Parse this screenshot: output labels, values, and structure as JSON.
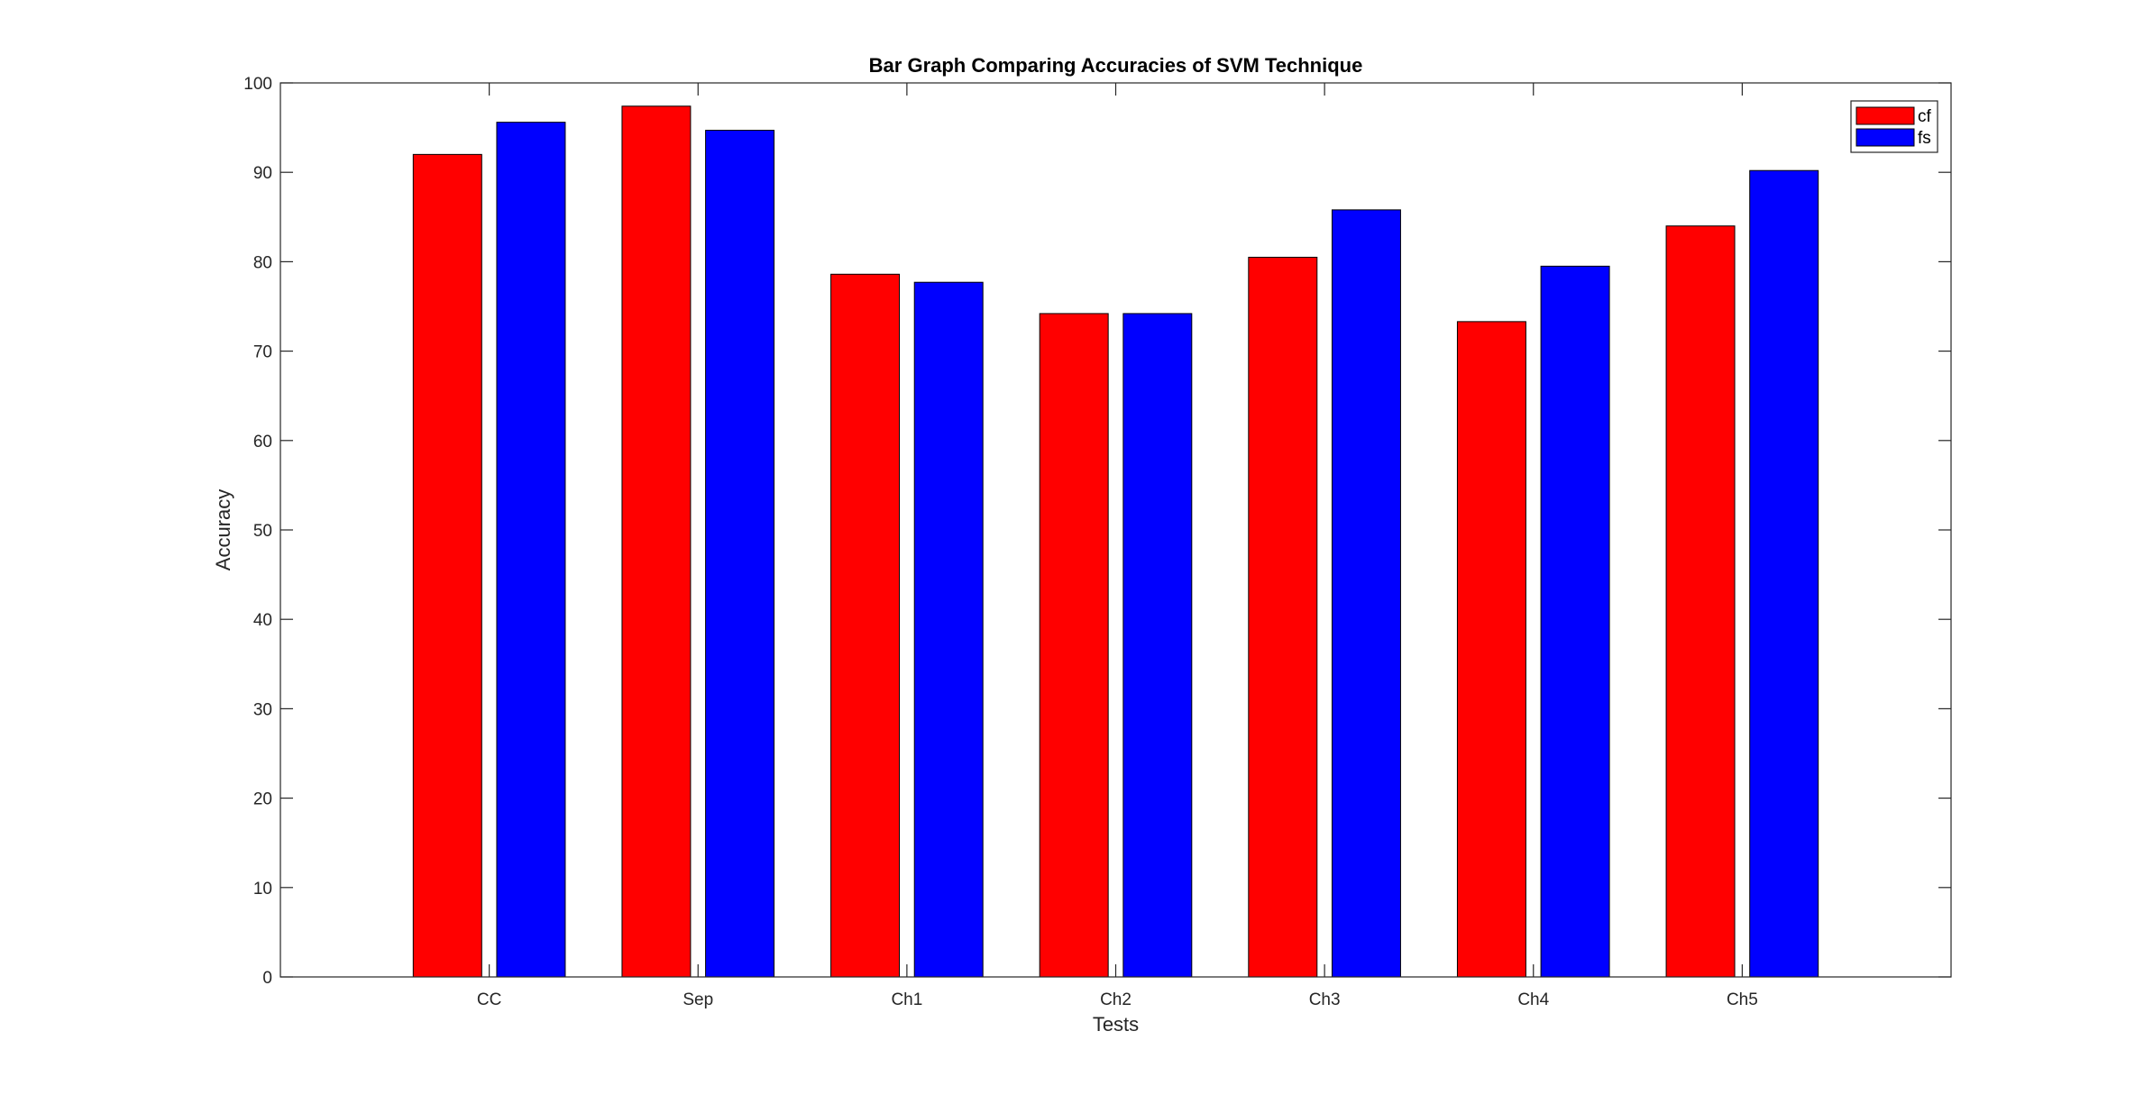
{
  "chart_data": {
    "type": "bar",
    "title": "Bar Graph Comparing Accuracies of SVM Technique",
    "xlabel": "Tests",
    "ylabel": "Accuracy",
    "categories": [
      "CC",
      "Sep",
      "Ch1",
      "Ch2",
      "Ch3",
      "Ch4",
      "Ch5"
    ],
    "series": [
      {
        "name": "cf",
        "color": "#ff0000",
        "values": [
          92.0,
          97.4,
          78.6,
          74.2,
          80.5,
          73.3,
          84.0
        ]
      },
      {
        "name": "fs",
        "color": "#0000ff",
        "values": [
          95.6,
          94.7,
          77.7,
          74.2,
          85.8,
          79.5,
          90.2
        ]
      }
    ],
    "ylim": [
      0,
      100
    ],
    "yticks": [
      0,
      10,
      20,
      30,
      40,
      50,
      60,
      70,
      80,
      90,
      100
    ],
    "xlim": [
      0,
      8
    ],
    "grid": false,
    "legend_position": "top-right"
  }
}
